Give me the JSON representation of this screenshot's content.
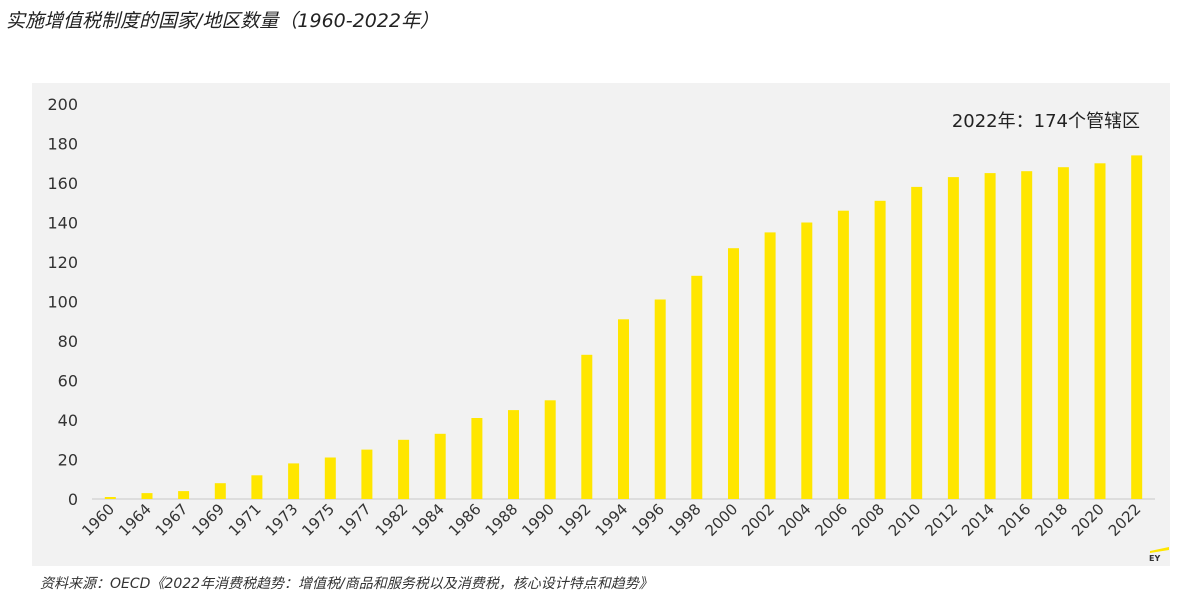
{
  "title": "实施增值税制度的国家/地区数量（1960-2022年）",
  "source": "资料来源：OECD《2022年消费税趋势：增值税/商品和服务税以及消费税，核心设计特点和趋势》",
  "logo_text": "EY",
  "chart_data": {
    "type": "bar",
    "title": "",
    "xlabel": "",
    "ylabel": "",
    "ylim": [
      0,
      200
    ],
    "yticks": [
      0,
      20,
      40,
      60,
      80,
      100,
      120,
      140,
      160,
      180,
      200
    ],
    "grid": false,
    "bar_color": "#ffe600",
    "categories": [
      "1960",
      "1964",
      "1967",
      "1969",
      "1971",
      "1973",
      "1975",
      "1977",
      "1982",
      "1984",
      "1986",
      "1988",
      "1990",
      "1992",
      "1994",
      "1996",
      "1998",
      "2000",
      "2002",
      "2004",
      "2006",
      "2008",
      "2010",
      "2012",
      "2014",
      "2016",
      "2018",
      "2020",
      "2022"
    ],
    "values": [
      1,
      3,
      4,
      8,
      12,
      18,
      21,
      25,
      30,
      33,
      41,
      45,
      50,
      73,
      91,
      101,
      113,
      127,
      135,
      140,
      146,
      151,
      158,
      163,
      165,
      166,
      168,
      170,
      174
    ],
    "annotation": "2022年：174个管辖区"
  }
}
